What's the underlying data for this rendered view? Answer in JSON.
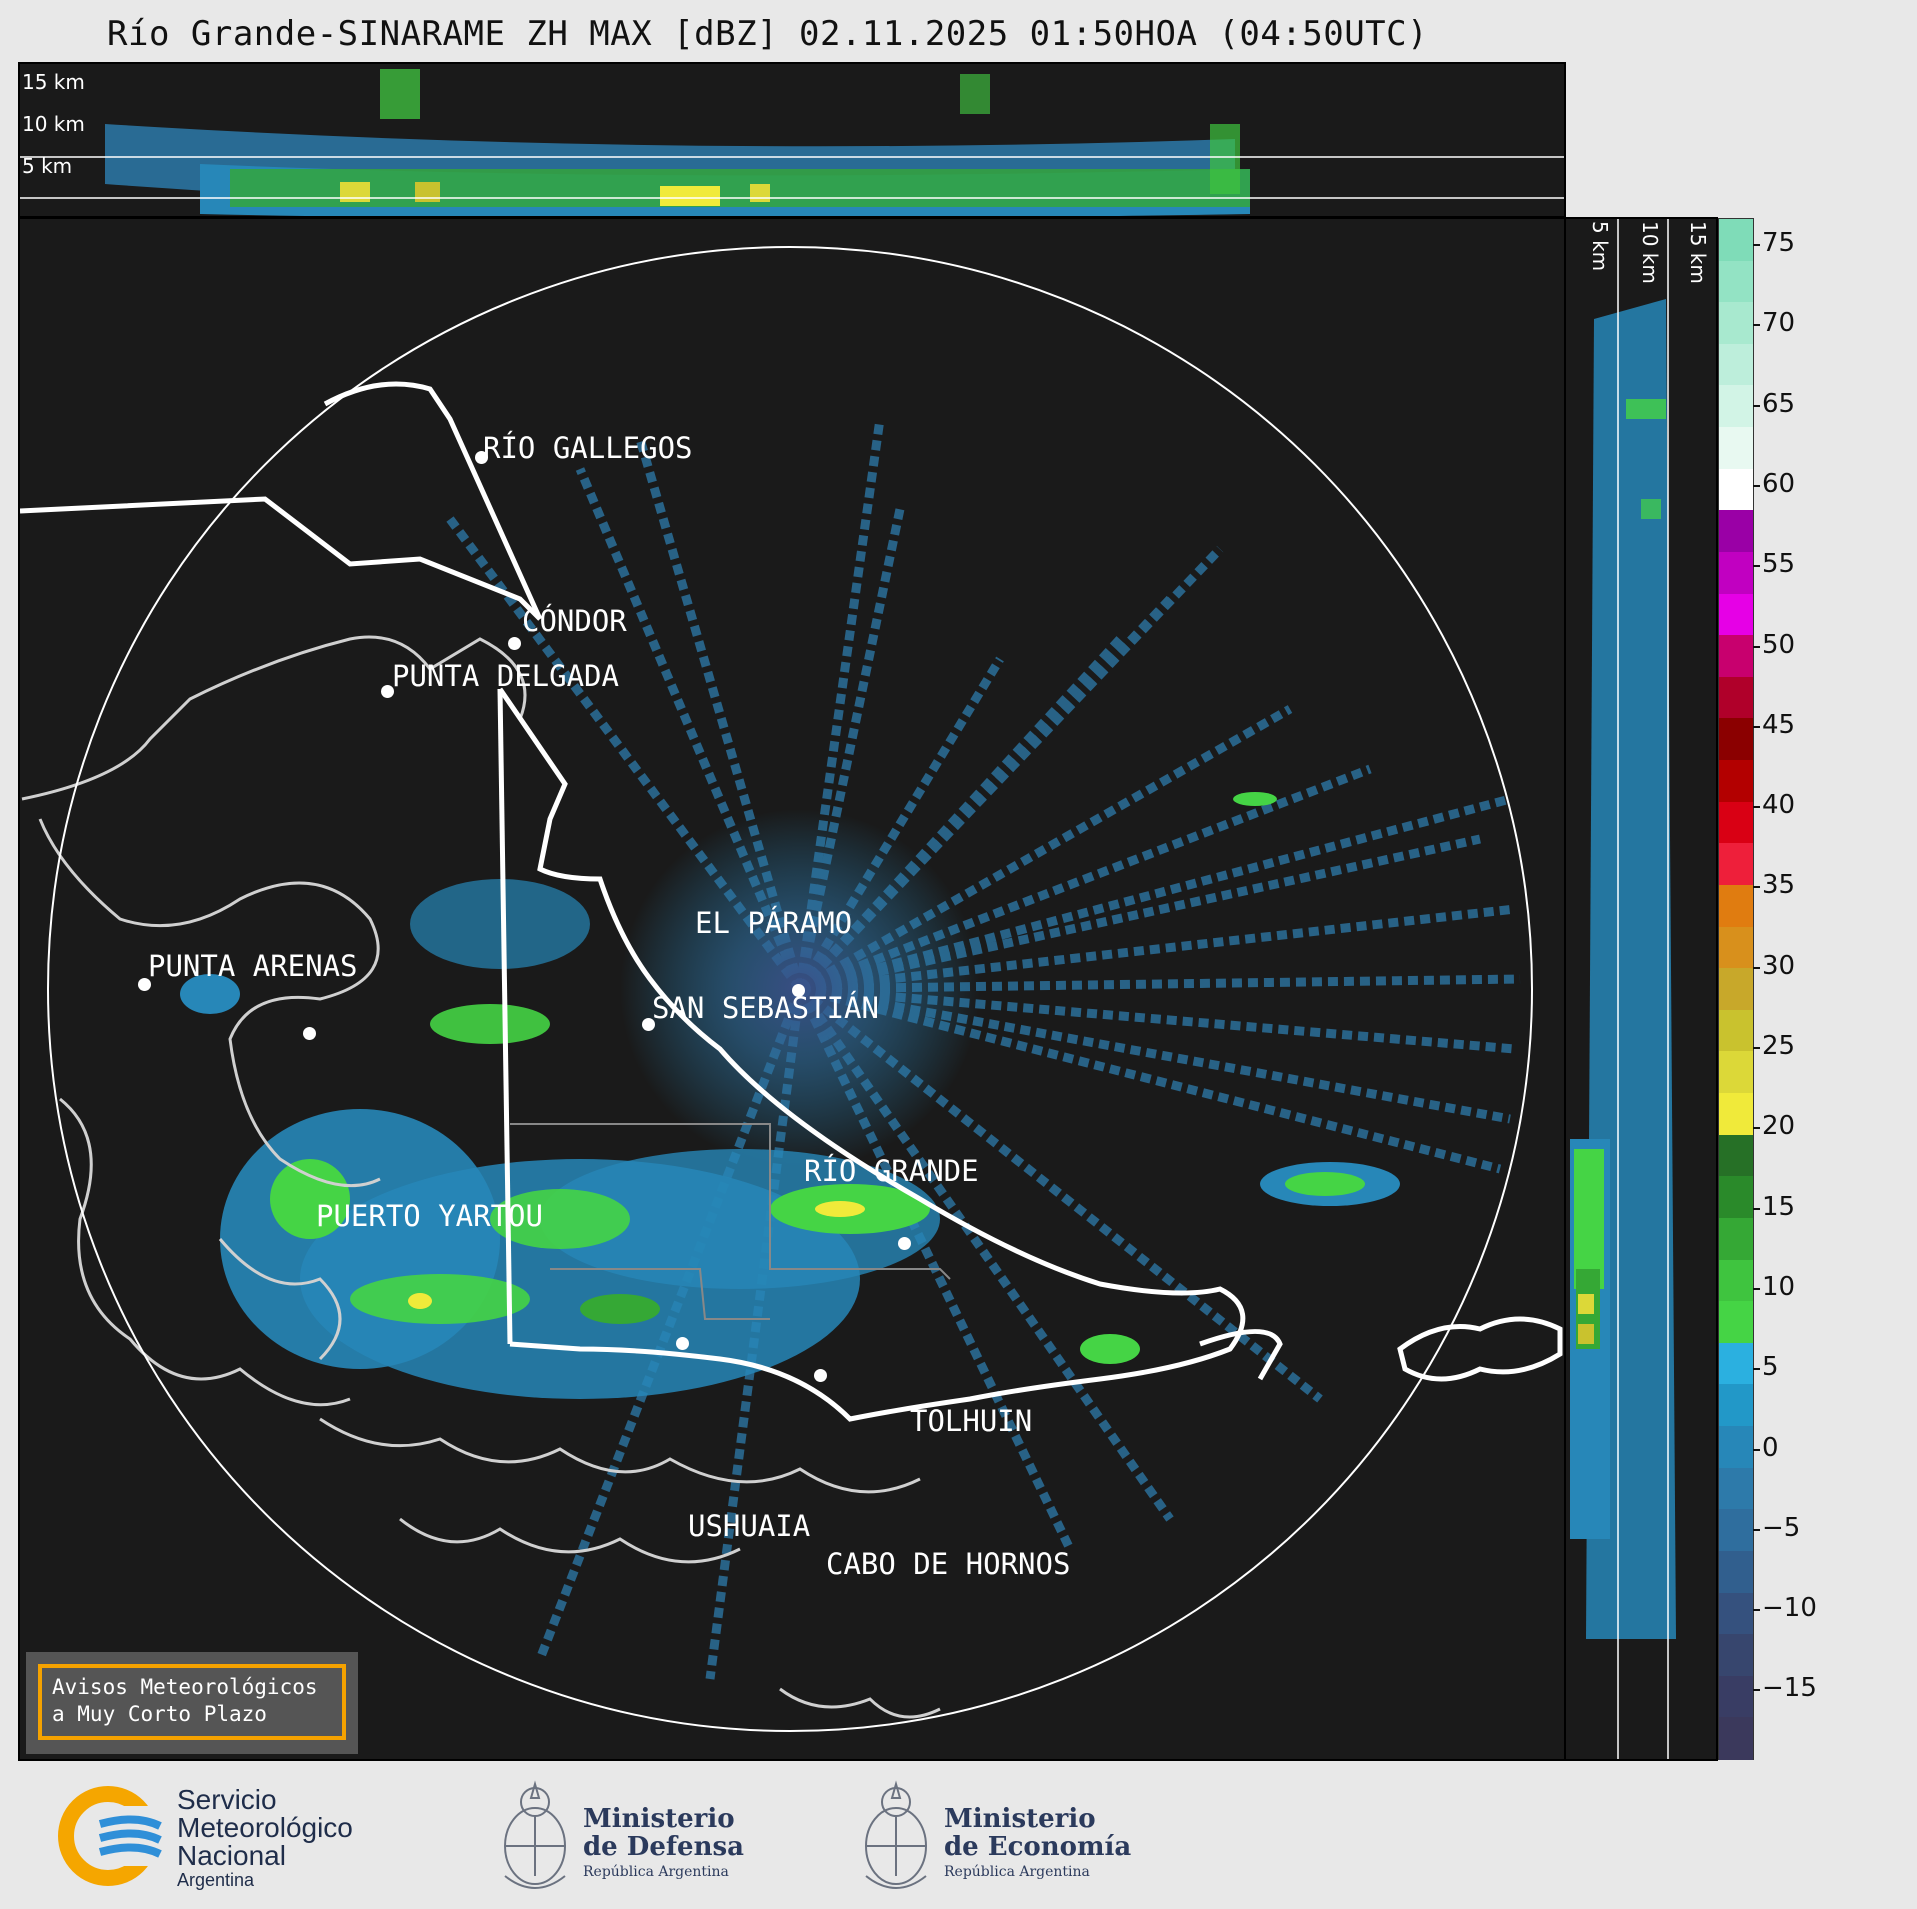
{
  "title": "Río Grande-SINARAME ZH MAX [dBZ] 02.11.2025 01:50HOA (04:50UTC)",
  "top_panel": {
    "km_labels": [
      "15 km",
      "10 km",
      "5 km"
    ]
  },
  "side_panel": {
    "km_labels": [
      "5 km",
      "10 km",
      "15 km"
    ]
  },
  "colorbar": {
    "unit": "dBZ",
    "ticks": [
      "75",
      "70",
      "65",
      "60",
      "55",
      "50",
      "45",
      "40",
      "35",
      "30",
      "25",
      "20",
      "15",
      "10",
      "5",
      "0",
      "−5",
      "−10",
      "−15"
    ],
    "colors_top_to_bottom": [
      "#7fdcb8",
      "#93e3c4",
      "#a8e9cf",
      "#bdeedb",
      "#d2f4e6",
      "#e8f9f1",
      "#ffffff",
      "#9a00a6",
      "#c100c1",
      "#e600e6",
      "#c8006e",
      "#b0002a",
      "#8b0000",
      "#b30000",
      "#d90014",
      "#ee1f3a",
      "#e07c10",
      "#d8901c",
      "#c8a82a",
      "#c9c22e",
      "#dcd838",
      "#f0ea3a",
      "#267026",
      "#2a8a2a",
      "#35a835",
      "#3fc43f",
      "#45d445",
      "#2bb0e0",
      "#2298c8",
      "#2787b8",
      "#2d7aaa",
      "#2f6e9e",
      "#315f8e",
      "#35517e",
      "#37466e",
      "#393d64",
      "#3b395c"
    ]
  },
  "cities": [
    {
      "name": "RÍO GALLEGOS"
    },
    {
      "name": "CÓNDOR"
    },
    {
      "name": "PUNTA DELGADA"
    },
    {
      "name": "EL PÁRAMO"
    },
    {
      "name": "PUNTA ARENAS"
    },
    {
      "name": "SAN SEBASTIÁN"
    },
    {
      "name": "RÍO GRANDE"
    },
    {
      "name": "PUERTO YARTOU"
    },
    {
      "name": "TOLHUIN"
    },
    {
      "name": "USHUAIA"
    },
    {
      "name": "CABO DE HORNOS"
    }
  ],
  "notice": {
    "line1": "Avisos Meteorológicos",
    "line2": "a Muy Corto Plazo"
  },
  "logos": {
    "smn": {
      "line1": "Servicio",
      "line2": "Meteorológico",
      "line3": "Nacional",
      "line4": "Argentina"
    },
    "defensa": {
      "line1": "Ministerio",
      "line2": "de Defensa",
      "line3": "República Argentina"
    },
    "economia": {
      "line1": "Ministerio",
      "line2": "de Economía",
      "line3": "República Argentina"
    }
  }
}
